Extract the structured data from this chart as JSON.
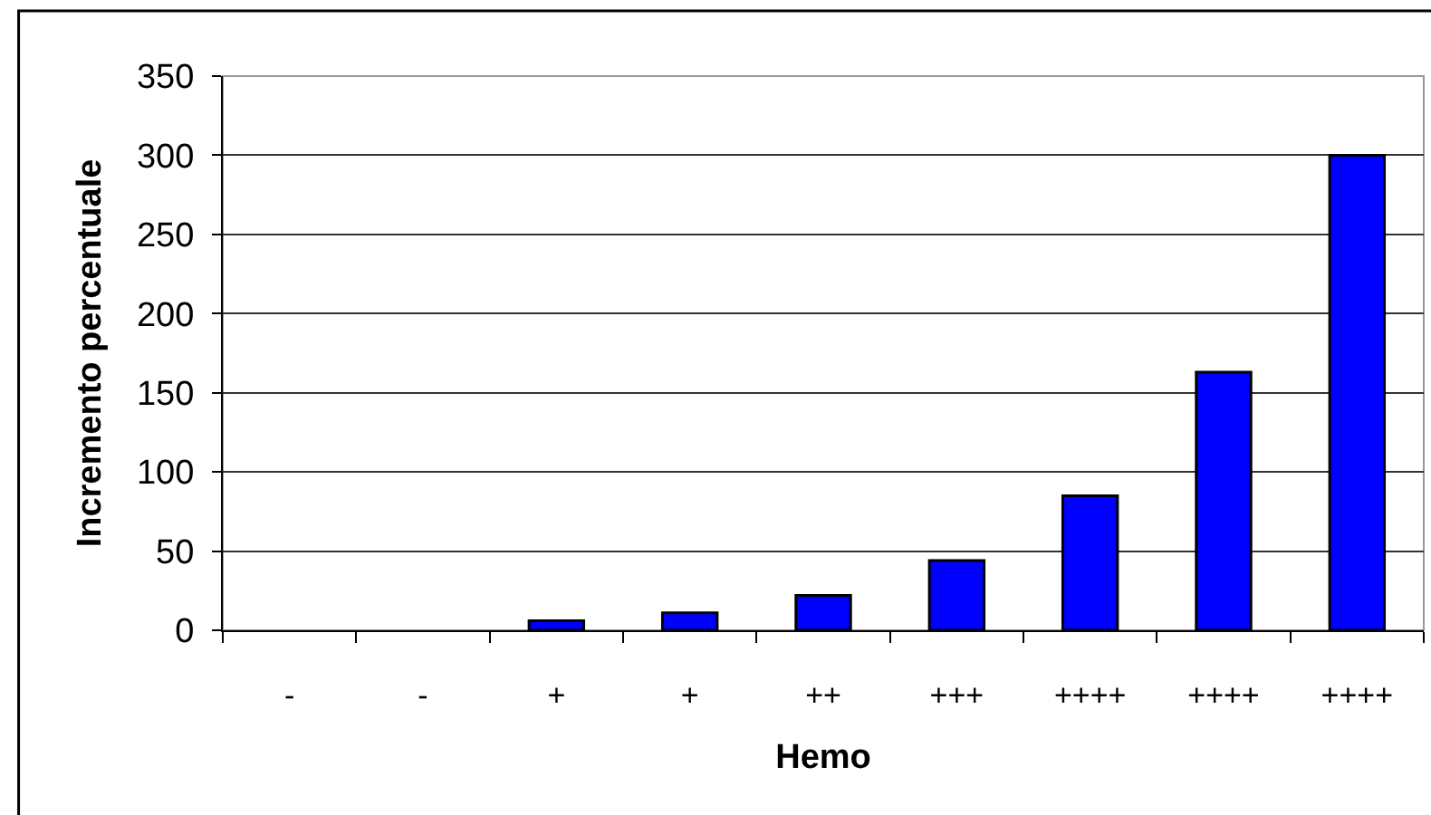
{
  "chart_data": {
    "type": "bar",
    "xlabel": "Hemo",
    "ylabel": "Incremento percentuale",
    "categories": [
      "-",
      "-",
      "+",
      "+",
      "++",
      "+++",
      "++++",
      "++++",
      "++++"
    ],
    "values": [
      0,
      0,
      6,
      11,
      22,
      44,
      85,
      163,
      300
    ],
    "color": "#0000ff",
    "ylim": [
      0,
      350
    ],
    "yticks": [
      0,
      50,
      100,
      150,
      200,
      250,
      300,
      350
    ],
    "grid": "y",
    "legend": false
  }
}
